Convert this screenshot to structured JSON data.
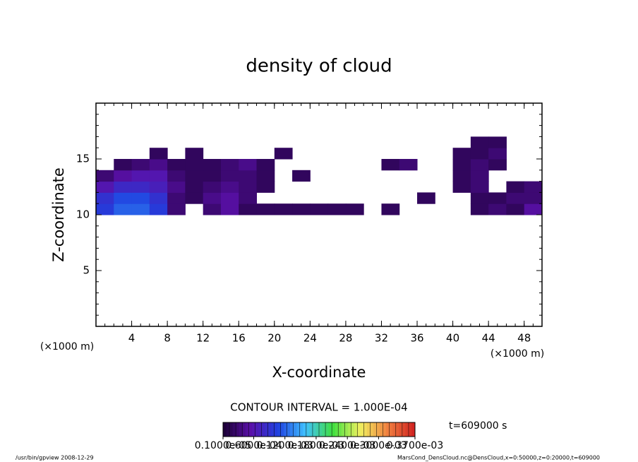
{
  "chart_data": {
    "type": "heatmap",
    "title": "density of cloud",
    "x_label": "X-coordinate",
    "y_label": "Z-coordinate",
    "x_unit": "(×1000 m)",
    "y_unit": "(×1000 m)",
    "xlim": [
      0,
      50
    ],
    "ylim": [
      0,
      20
    ],
    "xticks": [
      4,
      8,
      12,
      16,
      20,
      24,
      28,
      32,
      36,
      40,
      44,
      48
    ],
    "yticks": [
      5,
      10,
      15
    ],
    "x": [
      1,
      3,
      5,
      7,
      9,
      11,
      13,
      15,
      17,
      19,
      21,
      23,
      25,
      27,
      29,
      31,
      33,
      35,
      37,
      39,
      41,
      43,
      45,
      47,
      49
    ],
    "y": [
      10.5,
      11.5,
      12.5,
      13.5,
      14.5,
      15.5,
      16.5
    ],
    "values": [
      [
        0.0001,
        0.00012,
        0.00012,
        0.0001,
        3e-05,
        null,
        3e-05,
        5e-05,
        2e-05,
        2e-05,
        2e-05,
        2e-05,
        2e-05,
        2e-05,
        2e-05,
        null,
        2e-05,
        null,
        null,
        null,
        null,
        2e-05,
        3e-05,
        2e-05,
        5e-05
      ],
      [
        9e-05,
        0.00011,
        0.00011,
        9e-05,
        3e-05,
        2e-05,
        4e-05,
        5e-05,
        3e-05,
        null,
        null,
        null,
        null,
        null,
        null,
        null,
        null,
        null,
        2e-05,
        null,
        null,
        2e-05,
        2e-05,
        3e-05,
        3e-05
      ],
      [
        6e-05,
        8e-05,
        8e-05,
        7e-05,
        4e-05,
        2e-05,
        3e-05,
        4e-05,
        3e-05,
        2e-05,
        null,
        null,
        null,
        null,
        null,
        null,
        null,
        null,
        null,
        null,
        2e-05,
        3e-05,
        null,
        2e-05,
        3e-05
      ],
      [
        3e-05,
        5e-05,
        6e-05,
        6e-05,
        3e-05,
        2e-05,
        2e-05,
        3e-05,
        3e-05,
        2e-05,
        null,
        2e-05,
        null,
        null,
        null,
        null,
        null,
        null,
        null,
        null,
        2e-05,
        3e-05,
        null,
        null,
        null
      ],
      [
        null,
        2e-05,
        3e-05,
        4e-05,
        2e-05,
        2e-05,
        2e-05,
        3e-05,
        4e-05,
        2e-05,
        null,
        null,
        null,
        null,
        null,
        null,
        2e-05,
        3e-05,
        null,
        null,
        2e-05,
        3e-05,
        2e-05,
        null,
        null
      ],
      [
        null,
        null,
        null,
        2e-05,
        null,
        2e-05,
        null,
        null,
        null,
        null,
        2e-05,
        null,
        null,
        null,
        null,
        null,
        null,
        null,
        null,
        null,
        2e-05,
        2e-05,
        3e-05,
        null,
        null
      ],
      [
        null,
        null,
        null,
        null,
        null,
        null,
        null,
        null,
        null,
        null,
        null,
        null,
        null,
        null,
        null,
        null,
        null,
        null,
        null,
        null,
        null,
        2e-05,
        2e-05,
        null,
        null
      ]
    ],
    "clim": [
      1e-06,
      0.00037
    ],
    "colormap": [
      "#1a0033",
      "#5a10a8",
      "#2040e0",
      "#40c0ff",
      "#40e040",
      "#f0f060",
      "#f08040",
      "#d02020"
    ],
    "colorbar_ticks": [
      {
        "value": 1e-06,
        "label": "0.1000e-05"
      },
      {
        "value": 6e-05,
        "label": "0.6000e-04"
      },
      {
        "value": 0.00012,
        "label": "0.1200e-03"
      },
      {
        "value": 0.00018,
        "label": "0.1800e-03"
      },
      {
        "value": 0.00024,
        "label": "0.2400e-03"
      },
      {
        "value": 0.0003,
        "label": "0.3000e-03"
      },
      {
        "value": 0.00037,
        "label": "0.3700e-03"
      }
    ],
    "contour_note": "CONTOUR INTERVAL = 1.000E-04",
    "time_note": "t=609000 s",
    "footer_left": "/usr/bin/gpview   2008-12-29",
    "footer_right": "MarsCond_DensCloud.nc@DensCloud,x=0:50000,z=0:20000,t=609000"
  }
}
